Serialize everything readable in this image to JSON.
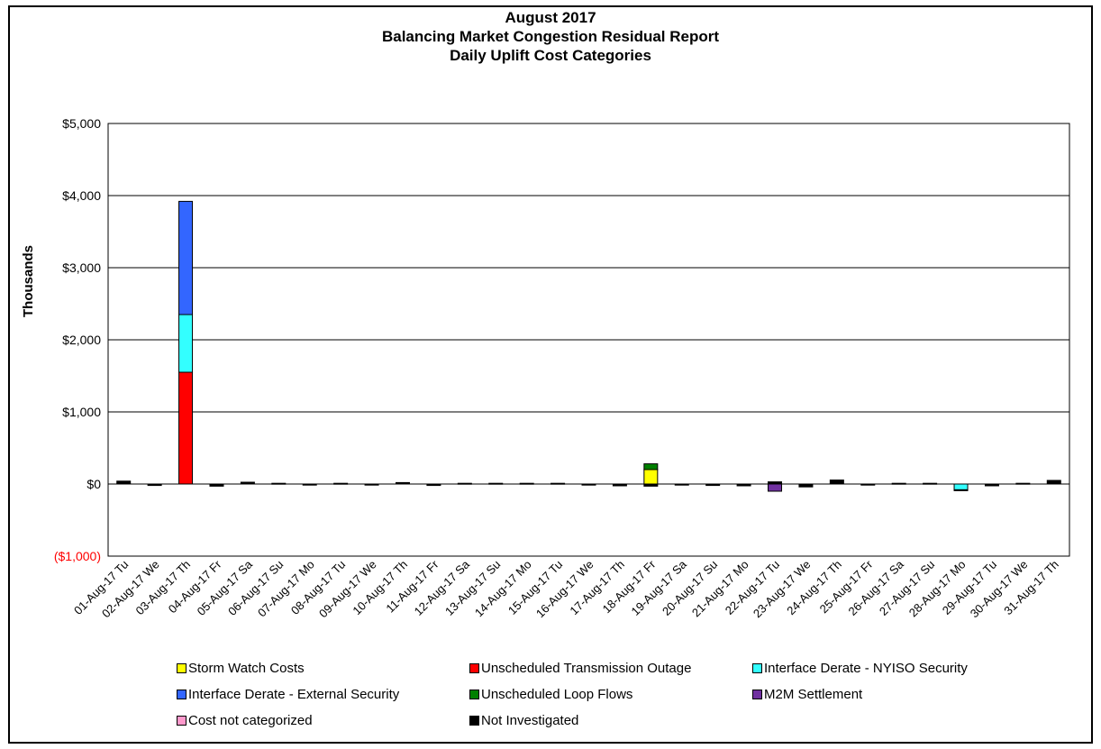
{
  "chart_data": {
    "type": "bar",
    "stacked": true,
    "title": [
      "August 2017",
      "Balancing Market Congestion Residual Report",
      "Daily Uplift Cost Categories"
    ],
    "ylabel": "Thousands",
    "xlabel": "",
    "ylim": [
      -1000,
      5000
    ],
    "yticks": [
      {
        "value": 5000,
        "label": "$5,000"
      },
      {
        "value": 4000,
        "label": "$4,000"
      },
      {
        "value": 3000,
        "label": "$3,000"
      },
      {
        "value": 2000,
        "label": "$2,000"
      },
      {
        "value": 1000,
        "label": "$1,000"
      },
      {
        "value": 0,
        "label": "$0"
      },
      {
        "value": -1000,
        "label": "($1,000)",
        "color": "#ff0000"
      }
    ],
    "grid": true,
    "legend_position": "bottom",
    "categories": [
      "01-Aug-17 Tu",
      "02-Aug-17 We",
      "03-Aug-17 Th",
      "04-Aug-17 Fr",
      "05-Aug-17 Sa",
      "06-Aug-17 Su",
      "07-Aug-17 Mo",
      "08-Aug-17 Tu",
      "09-Aug-17 We",
      "10-Aug-17 Th",
      "11-Aug-17 Fr",
      "12-Aug-17 Sa",
      "13-Aug-17 Su",
      "14-Aug-17 Mo",
      "15-Aug-17 Tu",
      "16-Aug-17 We",
      "17-Aug-17 Th",
      "18-Aug-17 Fr",
      "19-Aug-17 Sa",
      "20-Aug-17 Su",
      "21-Aug-17 Mo",
      "22-Aug-17 Tu",
      "23-Aug-17 We",
      "24-Aug-17 Th",
      "25-Aug-17 Fr",
      "26-Aug-17 Sa",
      "27-Aug-17 Su",
      "28-Aug-17 Mo",
      "29-Aug-17 Tu",
      "30-Aug-17 We",
      "31-Aug-17 Th"
    ],
    "series": [
      {
        "name": "Storm Watch Costs",
        "color": "#ffff00",
        "values": [
          0,
          0,
          0,
          0,
          0,
          0,
          0,
          0,
          0,
          0,
          0,
          0,
          0,
          0,
          0,
          0,
          0,
          200,
          0,
          0,
          0,
          0,
          0,
          0,
          0,
          0,
          0,
          0,
          0,
          0,
          0
        ]
      },
      {
        "name": "Unscheduled Transmission Outage",
        "color": "#ff0000",
        "values": [
          0,
          0,
          1550,
          0,
          0,
          0,
          0,
          0,
          0,
          0,
          0,
          0,
          0,
          0,
          0,
          0,
          0,
          0,
          0,
          0,
          0,
          0,
          0,
          0,
          0,
          0,
          0,
          0,
          0,
          0,
          0
        ]
      },
      {
        "name": "Interface Derate - NYISO Security",
        "color": "#33ffff",
        "values": [
          0,
          0,
          800,
          0,
          0,
          0,
          0,
          0,
          0,
          0,
          0,
          0,
          0,
          0,
          0,
          0,
          0,
          0,
          0,
          0,
          0,
          0,
          0,
          0,
          0,
          0,
          0,
          -80,
          0,
          0,
          0
        ]
      },
      {
        "name": "Interface Derate - External Security",
        "color": "#3366ff",
        "values": [
          0,
          0,
          1570,
          0,
          0,
          0,
          0,
          0,
          0,
          0,
          0,
          0,
          0,
          0,
          0,
          0,
          0,
          0,
          0,
          0,
          0,
          0,
          0,
          0,
          0,
          0,
          0,
          0,
          0,
          0,
          0
        ]
      },
      {
        "name": "Unscheduled Loop Flows",
        "color": "#008000",
        "values": [
          0,
          0,
          0,
          0,
          0,
          0,
          0,
          0,
          0,
          0,
          0,
          0,
          0,
          0,
          0,
          0,
          0,
          80,
          0,
          0,
          0,
          0,
          0,
          0,
          0,
          0,
          0,
          0,
          0,
          0,
          0
        ]
      },
      {
        "name": "M2M Settlement",
        "color": "#7030a0",
        "values": [
          0,
          0,
          0,
          0,
          0,
          0,
          0,
          0,
          0,
          0,
          0,
          0,
          0,
          0,
          0,
          0,
          0,
          0,
          0,
          0,
          0,
          -100,
          0,
          0,
          0,
          0,
          0,
          0,
          0,
          0,
          0
        ]
      },
      {
        "name": "Cost not categorized",
        "color": "#ff99cc",
        "values": [
          0,
          0,
          0,
          0,
          0,
          0,
          0,
          0,
          0,
          0,
          0,
          0,
          0,
          0,
          0,
          0,
          0,
          0,
          0,
          0,
          0,
          0,
          0,
          0,
          0,
          0,
          0,
          0,
          0,
          0,
          0
        ]
      },
      {
        "name": "Not Investigated",
        "color": "#000000",
        "values": [
          40,
          -20,
          0,
          -30,
          25,
          10,
          -15,
          10,
          -15,
          20,
          -20,
          10,
          10,
          10,
          10,
          -15,
          -25,
          -30,
          -15,
          -20,
          -25,
          30,
          -40,
          55,
          -15,
          10,
          10,
          -10,
          -25,
          10,
          50
        ]
      }
    ]
  }
}
